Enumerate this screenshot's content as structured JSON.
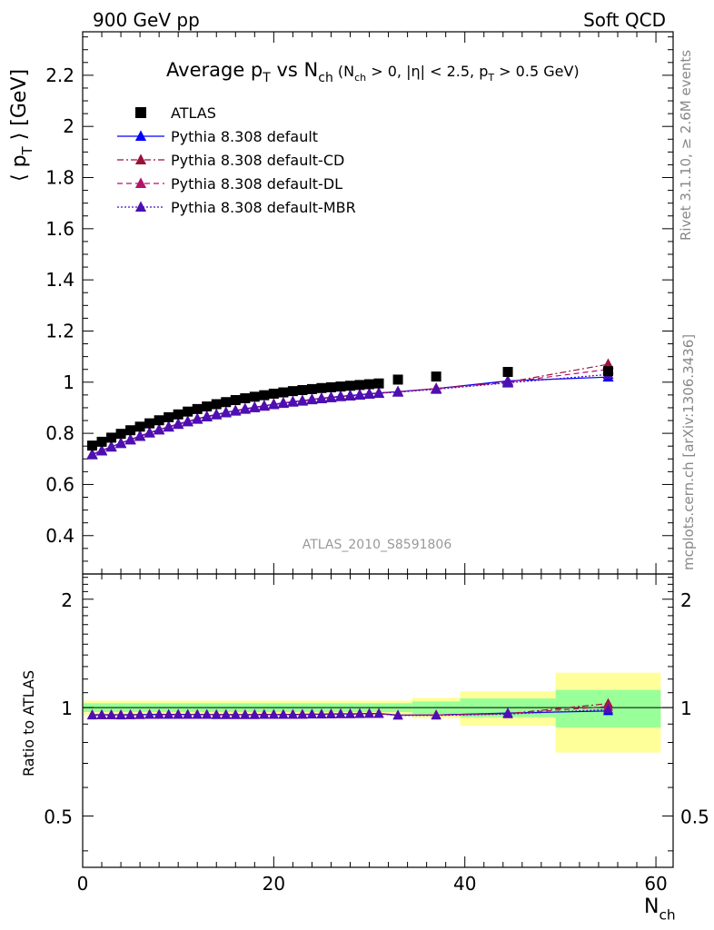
{
  "header": {
    "left": "900 GeV pp",
    "right": "Soft QCD"
  },
  "side_labels": {
    "top": "Rivet 3.1.10, ≥ 2.6M events",
    "bottom": "mcplots.cern.ch [arXiv:1306.3436]"
  },
  "chart_data": [
    {
      "type": "scatter",
      "title": "Average p_T vs N_ch (N_ch > 0, |η| < 2.5, p_T > 0.5 GeV)",
      "ylabel": "⟨ p_T ⟩ [GeV]",
      "xlabel": "N_ch",
      "watermark": "ATLAS_2010_S8591806",
      "xlim": [
        0,
        60
      ],
      "ylim": [
        0.25,
        2.37
      ],
      "yticks": [
        0.4,
        0.6,
        0.8,
        1,
        1.2,
        1.4,
        1.6,
        1.8,
        2,
        2.2
      ],
      "legend_position": "top-left",
      "series": [
        {
          "name": "ATLAS",
          "marker": "square",
          "color": "#000000",
          "x": [
            1,
            2,
            3,
            4,
            5,
            6,
            7,
            8,
            9,
            10,
            11,
            12,
            13,
            14,
            15,
            16,
            17,
            18,
            19,
            20,
            21,
            22,
            23,
            24,
            25,
            26,
            27,
            28,
            29,
            30,
            31,
            33,
            37,
            44.5,
            55
          ],
          "y": [
            0.752,
            0.767,
            0.783,
            0.798,
            0.812,
            0.826,
            0.839,
            0.851,
            0.863,
            0.874,
            0.885,
            0.895,
            0.905,
            0.914,
            0.922,
            0.93,
            0.937,
            0.943,
            0.949,
            0.955,
            0.96,
            0.965,
            0.969,
            0.973,
            0.977,
            0.98,
            0.983,
            0.986,
            0.989,
            0.992,
            0.995,
            1.01,
            1.022,
            1.04,
            1.043
          ]
        },
        {
          "name": "Pythia 8.308 default",
          "marker": "triangle",
          "color": "#0000ff",
          "line": "solid",
          "x": [
            1,
            2,
            3,
            4,
            5,
            6,
            7,
            8,
            9,
            10,
            11,
            12,
            13,
            14,
            15,
            16,
            17,
            18,
            19,
            20,
            21,
            22,
            23,
            24,
            25,
            26,
            27,
            28,
            29,
            30,
            31,
            33,
            37,
            44.5,
            55
          ],
          "y": [
            0.718,
            0.733,
            0.748,
            0.762,
            0.776,
            0.79,
            0.803,
            0.815,
            0.826,
            0.837,
            0.847,
            0.857,
            0.866,
            0.874,
            0.882,
            0.889,
            0.896,
            0.902,
            0.908,
            0.914,
            0.919,
            0.924,
            0.928,
            0.933,
            0.937,
            0.941,
            0.945,
            0.948,
            0.951,
            0.955,
            0.958,
            0.963,
            0.975,
            1.005,
            1.02
          ]
        },
        {
          "name": "Pythia 8.308 default-CD",
          "marker": "triangle",
          "color": "#9a1238",
          "line": "dashdot",
          "x": [
            1,
            2,
            3,
            4,
            5,
            6,
            7,
            8,
            9,
            10,
            11,
            12,
            13,
            14,
            15,
            16,
            17,
            18,
            19,
            20,
            21,
            22,
            23,
            24,
            25,
            26,
            27,
            28,
            29,
            30,
            31,
            33,
            37,
            44.5,
            55
          ],
          "y": [
            0.717,
            0.732,
            0.747,
            0.761,
            0.775,
            0.789,
            0.802,
            0.814,
            0.825,
            0.836,
            0.846,
            0.856,
            0.865,
            0.873,
            0.881,
            0.888,
            0.895,
            0.901,
            0.907,
            0.913,
            0.918,
            0.923,
            0.927,
            0.932,
            0.936,
            0.94,
            0.944,
            0.947,
            0.95,
            0.954,
            0.957,
            0.962,
            0.975,
            1.0,
            1.07
          ]
        },
        {
          "name": "Pythia 8.308 default-DL",
          "marker": "triangle",
          "color": "#b3126a",
          "line": "dashed",
          "x": [
            1,
            2,
            3,
            4,
            5,
            6,
            7,
            8,
            9,
            10,
            11,
            12,
            13,
            14,
            15,
            16,
            17,
            18,
            19,
            20,
            21,
            22,
            23,
            24,
            25,
            26,
            27,
            28,
            29,
            30,
            31,
            33,
            37,
            44.5,
            55
          ],
          "y": [
            0.717,
            0.732,
            0.747,
            0.761,
            0.775,
            0.789,
            0.802,
            0.814,
            0.825,
            0.836,
            0.846,
            0.856,
            0.865,
            0.873,
            0.881,
            0.888,
            0.895,
            0.901,
            0.907,
            0.913,
            0.918,
            0.923,
            0.927,
            0.932,
            0.936,
            0.94,
            0.944,
            0.947,
            0.95,
            0.954,
            0.957,
            0.962,
            0.975,
            1.0,
            1.05
          ]
        },
        {
          "name": "Pythia 8.308 default-MBR",
          "marker": "triangle",
          "color": "#4b0fb4",
          "line": "dotted",
          "x": [
            1,
            2,
            3,
            4,
            5,
            6,
            7,
            8,
            9,
            10,
            11,
            12,
            13,
            14,
            15,
            16,
            17,
            18,
            19,
            20,
            21,
            22,
            23,
            24,
            25,
            26,
            27,
            28,
            29,
            30,
            31,
            33,
            37,
            44.5,
            55
          ],
          "y": [
            0.716,
            0.731,
            0.746,
            0.76,
            0.774,
            0.788,
            0.801,
            0.813,
            0.824,
            0.835,
            0.845,
            0.855,
            0.864,
            0.872,
            0.88,
            0.887,
            0.894,
            0.9,
            0.906,
            0.912,
            0.917,
            0.922,
            0.926,
            0.931,
            0.935,
            0.939,
            0.943,
            0.946,
            0.949,
            0.953,
            0.956,
            0.961,
            0.972,
            0.997,
            1.03
          ]
        }
      ]
    },
    {
      "type": "line",
      "ylabel": "Ratio to ATLAS",
      "xlabel": "N_ch",
      "xlim": [
        0,
        60
      ],
      "ylim": [
        0.36,
        2.35
      ],
      "scale": "log",
      "yticks": [
        0.5,
        1,
        2
      ],
      "xticks": [
        0,
        20,
        40,
        60
      ],
      "bands": {
        "edges": [
          0,
          34.5,
          39.5,
          49.5,
          60.5
        ],
        "yellow_halfwidth": [
          0.045,
          0.065,
          0.11,
          0.25
        ],
        "green_halfwidth": [
          0.028,
          0.04,
          0.06,
          0.12
        ]
      },
      "series": [
        {
          "name": "Pythia 8.308 default",
          "color": "#0000ff",
          "x": [
            1,
            2,
            3,
            4,
            5,
            6,
            7,
            8,
            9,
            10,
            11,
            12,
            13,
            14,
            15,
            16,
            17,
            18,
            19,
            20,
            21,
            22,
            23,
            24,
            25,
            26,
            27,
            28,
            29,
            30,
            31,
            33,
            37,
            44.5,
            55
          ],
          "y": [
            0.955,
            0.956,
            0.955,
            0.955,
            0.956,
            0.956,
            0.957,
            0.958,
            0.957,
            0.958,
            0.957,
            0.957,
            0.957,
            0.956,
            0.957,
            0.956,
            0.956,
            0.957,
            0.957,
            0.957,
            0.957,
            0.957,
            0.958,
            0.959,
            0.959,
            0.96,
            0.961,
            0.961,
            0.962,
            0.963,
            0.963,
            0.953,
            0.954,
            0.966,
            0.978
          ]
        },
        {
          "name": "Pythia 8.308 default-CD",
          "color": "#9a1238",
          "x": [
            1,
            2,
            3,
            4,
            5,
            6,
            7,
            8,
            9,
            10,
            11,
            12,
            13,
            14,
            15,
            16,
            17,
            18,
            19,
            20,
            21,
            22,
            23,
            24,
            25,
            26,
            27,
            28,
            29,
            30,
            31,
            33,
            37,
            44.5,
            55
          ],
          "y": [
            0.953,
            0.954,
            0.954,
            0.954,
            0.954,
            0.955,
            0.956,
            0.956,
            0.956,
            0.957,
            0.956,
            0.956,
            0.956,
            0.955,
            0.955,
            0.955,
            0.955,
            0.955,
            0.956,
            0.956,
            0.956,
            0.956,
            0.957,
            0.958,
            0.958,
            0.959,
            0.96,
            0.96,
            0.961,
            0.962,
            0.962,
            0.952,
            0.954,
            0.962,
            1.026
          ]
        },
        {
          "name": "Pythia 8.308 default-DL",
          "color": "#b3126a",
          "x": [
            1,
            2,
            3,
            4,
            5,
            6,
            7,
            8,
            9,
            10,
            11,
            12,
            13,
            14,
            15,
            16,
            17,
            18,
            19,
            20,
            21,
            22,
            23,
            24,
            25,
            26,
            27,
            28,
            29,
            30,
            31,
            33,
            37,
            44.5,
            55
          ],
          "y": [
            0.953,
            0.954,
            0.954,
            0.954,
            0.954,
            0.955,
            0.956,
            0.956,
            0.956,
            0.957,
            0.956,
            0.956,
            0.956,
            0.955,
            0.955,
            0.955,
            0.955,
            0.955,
            0.956,
            0.956,
            0.956,
            0.956,
            0.957,
            0.958,
            0.958,
            0.959,
            0.96,
            0.96,
            0.961,
            0.962,
            0.962,
            0.952,
            0.954,
            0.962,
            1.007
          ]
        },
        {
          "name": "Pythia 8.308 default-MBR",
          "color": "#4b0fb4",
          "x": [
            1,
            2,
            3,
            4,
            5,
            6,
            7,
            8,
            9,
            10,
            11,
            12,
            13,
            14,
            15,
            16,
            17,
            18,
            19,
            20,
            21,
            22,
            23,
            24,
            25,
            26,
            27,
            28,
            29,
            30,
            31,
            33,
            37,
            44.5,
            55
          ],
          "y": [
            0.952,
            0.953,
            0.953,
            0.952,
            0.953,
            0.954,
            0.955,
            0.955,
            0.955,
            0.955,
            0.955,
            0.955,
            0.955,
            0.954,
            0.954,
            0.954,
            0.954,
            0.954,
            0.955,
            0.955,
            0.955,
            0.955,
            0.956,
            0.957,
            0.957,
            0.958,
            0.959,
            0.959,
            0.96,
            0.961,
            0.961,
            0.951,
            0.951,
            0.959,
            0.988
          ]
        }
      ]
    }
  ]
}
